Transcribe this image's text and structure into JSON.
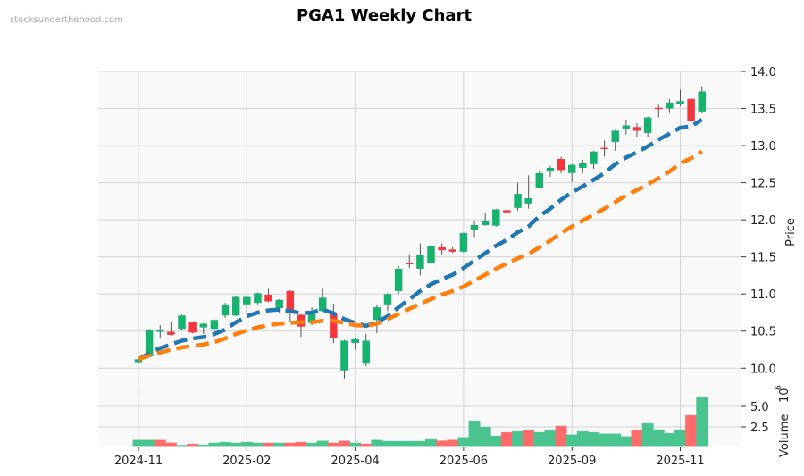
{
  "watermark": "stocksunderthehood.com",
  "chart_data": {
    "type": "candlestick",
    "title": "PGA1 Weekly Chart",
    "ylabel": "Price",
    "volume_label": "Volume",
    "volume_exponent": "10",
    "volume_exponent_power": "6",
    "ylim": [
      9.69,
      14.0
    ],
    "volume_ylim": [
      0.22,
      6.63
    ],
    "price_ticks": [
      "10.0",
      "10.5",
      "11.0",
      "11.5",
      "12.0",
      "12.5",
      "13.0",
      "13.5",
      "14.0"
    ],
    "volume_ticks": [
      "2.5",
      "5.0"
    ],
    "x_ticks": [
      {
        "index": 0,
        "label": "2024-11"
      },
      {
        "index": 10,
        "label": "2025-02"
      },
      {
        "index": 20,
        "label": "2025-04"
      },
      {
        "index": 30,
        "label": "2025-06"
      },
      {
        "index": 40,
        "label": "2025-09"
      },
      {
        "index": 50,
        "label": "2025-11"
      }
    ],
    "grid": true,
    "ohlc": [
      [
        10.08,
        10.13,
        10.07,
        10.12
      ],
      [
        10.16,
        10.53,
        10.15,
        10.52
      ],
      [
        10.49,
        10.58,
        10.4,
        10.51
      ],
      [
        10.49,
        10.63,
        10.44,
        10.45
      ],
      [
        10.53,
        10.72,
        10.52,
        10.71
      ],
      [
        10.62,
        10.63,
        10.47,
        10.48
      ],
      [
        10.55,
        10.61,
        10.46,
        10.6
      ],
      [
        10.53,
        10.66,
        10.42,
        10.65
      ],
      [
        10.71,
        10.88,
        10.68,
        10.86
      ],
      [
        10.71,
        10.97,
        10.7,
        10.96
      ],
      [
        10.86,
        10.97,
        10.73,
        10.96
      ],
      [
        10.88,
        11.02,
        10.86,
        11.01
      ],
      [
        10.99,
        11.07,
        10.89,
        10.9
      ],
      [
        10.81,
        10.93,
        10.74,
        10.92
      ],
      [
        11.04,
        11.05,
        10.63,
        10.76
      ],
      [
        10.72,
        10.73,
        10.42,
        10.56
      ],
      [
        10.61,
        10.82,
        10.58,
        10.77
      ],
      [
        10.77,
        11.07,
        10.76,
        10.95
      ],
      [
        10.73,
        10.87,
        10.34,
        10.41
      ],
      [
        9.97,
        10.38,
        9.86,
        10.37
      ],
      [
        10.34,
        10.4,
        10.25,
        10.39
      ],
      [
        10.06,
        10.46,
        10.03,
        10.37
      ],
      [
        10.65,
        10.86,
        10.47,
        10.82
      ],
      [
        10.86,
        11.01,
        10.77,
        11.0
      ],
      [
        11.04,
        11.38,
        11.0,
        11.34
      ],
      [
        11.42,
        11.53,
        11.35,
        11.4
      ],
      [
        11.34,
        11.68,
        11.25,
        11.53
      ],
      [
        11.41,
        11.73,
        11.4,
        11.65
      ],
      [
        11.63,
        11.68,
        11.53,
        11.59
      ],
      [
        11.6,
        11.63,
        11.55,
        11.57
      ],
      [
        11.57,
        11.83,
        11.56,
        11.82
      ],
      [
        11.87,
        11.98,
        11.77,
        11.93
      ],
      [
        11.93,
        12.09,
        11.92,
        11.98
      ],
      [
        11.92,
        12.15,
        11.91,
        12.14
      ],
      [
        12.13,
        12.16,
        12.06,
        12.1
      ],
      [
        12.16,
        12.5,
        12.12,
        12.35
      ],
      [
        12.22,
        12.6,
        12.15,
        12.29
      ],
      [
        12.43,
        12.67,
        12.42,
        12.63
      ],
      [
        12.65,
        12.73,
        12.58,
        12.7
      ],
      [
        12.82,
        12.85,
        12.63,
        12.67
      ],
      [
        12.63,
        12.75,
        12.51,
        12.74
      ],
      [
        12.7,
        12.81,
        12.63,
        12.76
      ],
      [
        12.75,
        12.93,
        12.69,
        12.92
      ],
      [
        12.97,
        13.07,
        12.85,
        12.96
      ],
      [
        13.05,
        13.21,
        12.93,
        13.2
      ],
      [
        13.22,
        13.35,
        13.15,
        13.27
      ],
      [
        13.25,
        13.3,
        13.12,
        13.2
      ],
      [
        13.17,
        13.39,
        13.12,
        13.38
      ],
      [
        13.51,
        13.55,
        13.38,
        13.5
      ],
      [
        13.5,
        13.63,
        13.45,
        13.58
      ],
      [
        13.56,
        13.75,
        13.53,
        13.6
      ],
      [
        13.63,
        13.67,
        13.32,
        13.33
      ],
      [
        13.46,
        13.8,
        13.44,
        13.73
      ]
    ],
    "volume": [
      0.87,
      0.87,
      0.87,
      0.54,
      0.25,
      0.4,
      0.3,
      0.52,
      0.62,
      0.52,
      0.62,
      0.52,
      0.52,
      0.52,
      0.52,
      0.62,
      0.52,
      0.76,
      0.52,
      0.76,
      0.52,
      0.4,
      0.87,
      0.73,
      0.73,
      0.73,
      0.73,
      0.95,
      0.77,
      0.88,
      1.2,
      3.22,
      2.46,
      1.38,
      1.81,
      1.92,
      2.03,
      1.81,
      2.03,
      2.58,
      1.52,
      1.92,
      1.81,
      1.63,
      1.63,
      1.3,
      2.03,
      2.9,
      2.14,
      1.7,
      2.14,
      3.88,
      6.05
    ],
    "moving_averages": [
      {
        "color": "#1f77b4",
        "values": [
          10.12,
          10.2,
          10.27,
          10.32,
          10.37,
          10.4,
          10.42,
          10.46,
          10.52,
          10.62,
          10.7,
          10.75,
          10.78,
          10.79,
          10.77,
          10.74,
          10.75,
          10.79,
          10.74,
          10.66,
          10.61,
          10.57,
          10.62,
          10.7,
          10.82,
          10.93,
          11.04,
          11.13,
          11.2,
          11.26,
          11.35,
          11.45,
          11.55,
          11.65,
          11.73,
          11.83,
          11.91,
          12.05,
          12.15,
          12.27,
          12.37,
          12.45,
          12.54,
          12.63,
          12.75,
          12.84,
          12.91,
          12.99,
          13.08,
          13.16,
          13.24,
          13.26,
          13.35
        ]
      },
      {
        "color": "#ff7f0e",
        "values": [
          10.12,
          10.17,
          10.21,
          10.25,
          10.28,
          10.3,
          10.32,
          10.35,
          10.4,
          10.46,
          10.51,
          10.55,
          10.58,
          10.6,
          10.61,
          10.62,
          10.62,
          10.64,
          10.64,
          10.61,
          10.58,
          10.57,
          10.6,
          10.66,
          10.73,
          10.8,
          10.87,
          10.93,
          10.99,
          11.04,
          11.1,
          11.18,
          11.26,
          11.34,
          11.41,
          11.48,
          11.54,
          11.63,
          11.72,
          11.82,
          11.91,
          11.99,
          12.07,
          12.15,
          12.24,
          12.33,
          12.4,
          12.48,
          12.56,
          12.65,
          12.76,
          12.83,
          12.92
        ]
      }
    ],
    "colors": {
      "up": "#16b36e",
      "down": "#f5363f",
      "volume_up": "#4ac48e",
      "volume_down": "#ff6b6b",
      "panel_bg": "#f9f9f9",
      "grid": "#d3d3d3"
    }
  }
}
